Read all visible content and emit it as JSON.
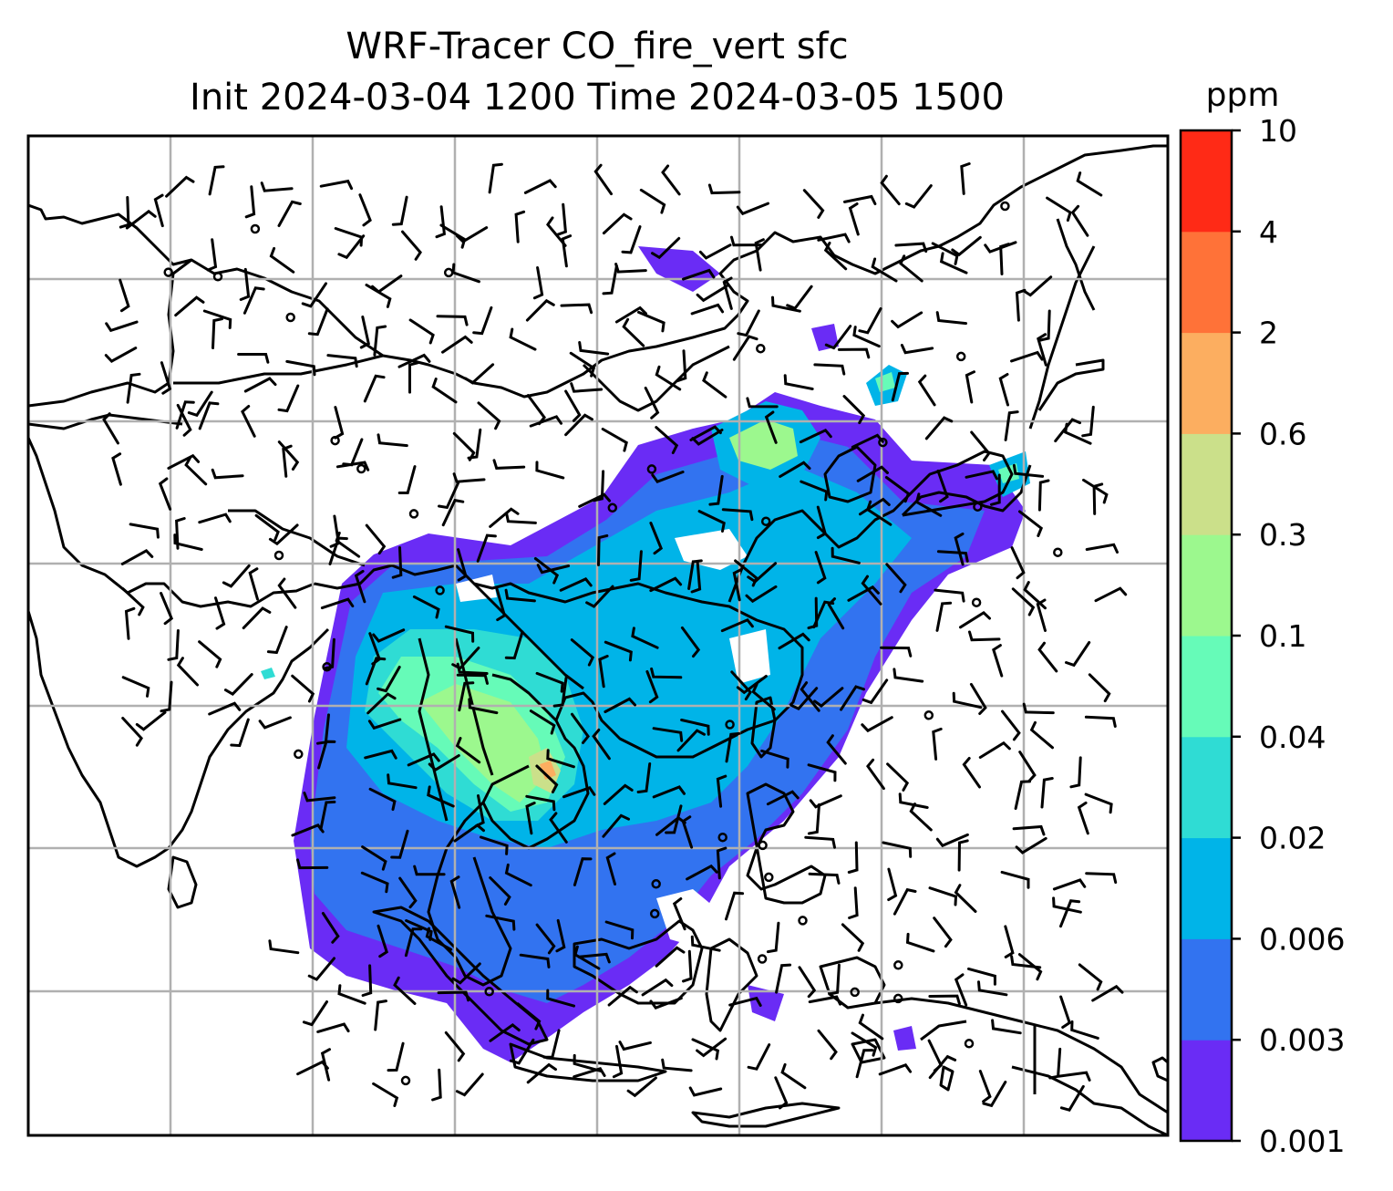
{
  "title": {
    "line1": "WRF-Tracer CO_fire_vert sfc",
    "line2": "Init 2024-03-04 1200 Time 2024-03-05 1500"
  },
  "colorbar": {
    "unit": "ppm",
    "levels": [
      "0.001",
      "0.003",
      "0.006",
      "0.02",
      "0.04",
      "0.1",
      "0.3",
      "0.6",
      "2",
      "4",
      "10"
    ],
    "colors": [
      "#6a2cf5",
      "#3273f0",
      "#00b4e8",
      "#2fdcd4",
      "#66fbb8",
      "#9cf88e",
      "#cbe08a",
      "#fcae60",
      "#ff7238",
      "#ff2a16"
    ]
  },
  "map": {
    "grid": true,
    "features": [
      "coastlines",
      "country-borders",
      "wind-barbs",
      "calm-circles",
      "co-concentration-fill"
    ]
  }
}
